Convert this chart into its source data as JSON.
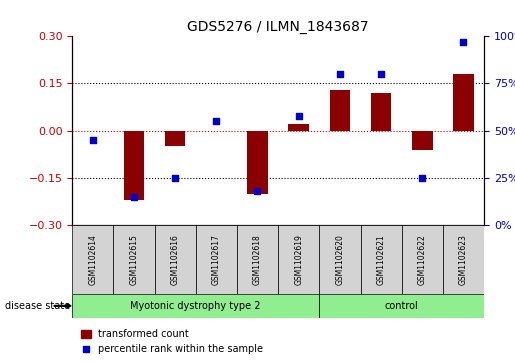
{
  "title": "GDS5276 / ILMN_1843687",
  "categories": [
    "GSM1102614",
    "GSM1102615",
    "GSM1102616",
    "GSM1102617",
    "GSM1102618",
    "GSM1102619",
    "GSM1102620",
    "GSM1102621",
    "GSM1102622",
    "GSM1102623"
  ],
  "bar_values": [
    0.0,
    -0.22,
    -0.05,
    0.0,
    -0.2,
    0.02,
    0.13,
    0.12,
    -0.06,
    0.18
  ],
  "percentile_values": [
    45,
    15,
    25,
    55,
    18,
    58,
    80,
    80,
    25,
    97
  ],
  "bar_color": "#8B0000",
  "dot_color": "#0000CC",
  "ylim_left": [
    -0.3,
    0.3
  ],
  "ylim_right": [
    0,
    100
  ],
  "yticks_left": [
    -0.3,
    -0.15,
    0.0,
    0.15,
    0.3
  ],
  "yticks_right": [
    0,
    25,
    50,
    75,
    100
  ],
  "hlines": [
    0.15,
    -0.15
  ],
  "hline_zero_color": "#CC0000",
  "group1_label": "Myotonic dystrophy type 2",
  "group1_count": 6,
  "group2_label": "control",
  "group2_count": 4,
  "group_bar_color": "#90EE90",
  "sample_box_color": "#D3D3D3",
  "disease_state_label": "disease state",
  "legend_bar_label": "transformed count",
  "legend_dot_label": "percentile rank within the sample",
  "tick_label_color_left": "#CC0000",
  "tick_label_color_right": "#0000CC",
  "bar_width": 0.5,
  "dot_size": 25,
  "background_color": "#FFFFFF"
}
